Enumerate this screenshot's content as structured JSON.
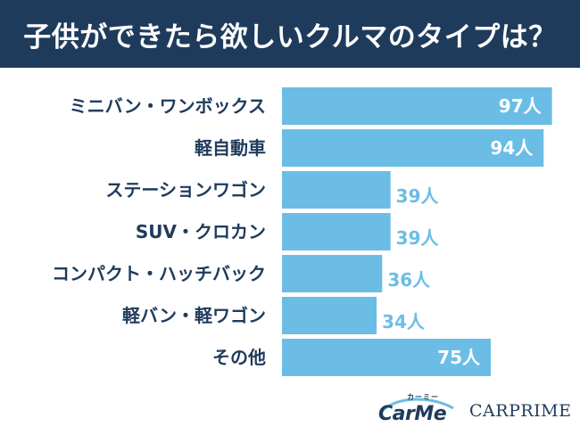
{
  "header": {
    "title": "子供ができたら欲しいクルマのタイプは？"
  },
  "chart_data": {
    "type": "bar",
    "orientation": "horizontal",
    "title": "子供ができたら欲しいクルマのタイプは？",
    "categories": [
      "ミニバン・ワンボックス",
      "軽自動車",
      "ステーションワゴン",
      "SUV・クロカン",
      "コンパクト・ハッチバック",
      "軽バン・軽ワゴン",
      "その他"
    ],
    "values": [
      97,
      94,
      39,
      39,
      36,
      34,
      75
    ],
    "value_labels": [
      "97人",
      "94人",
      "39人",
      "39人",
      "36人",
      "34人",
      "75人"
    ],
    "unit": "人",
    "xlim": [
      0,
      100
    ],
    "grid": false,
    "legend": "none",
    "bar_color": "#6cbde6",
    "label_color": "#1f3b5c"
  },
  "logos": {
    "carme": {
      "name": "CarMe",
      "kana": "カーミー"
    },
    "carprime": {
      "name": "CARPRIME"
    }
  }
}
